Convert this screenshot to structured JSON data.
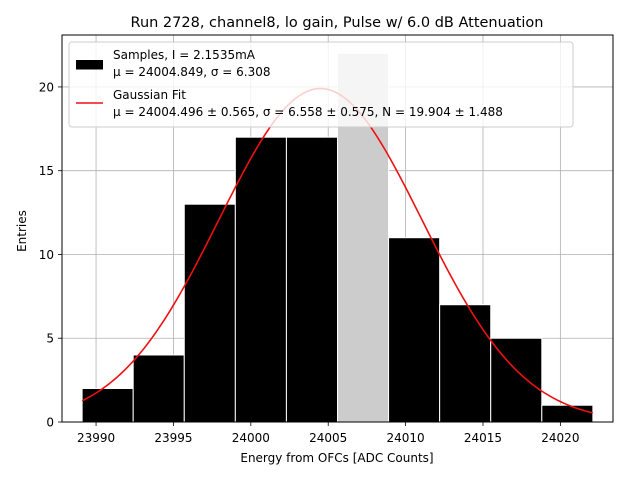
{
  "chart_data": {
    "type": "bar",
    "title": "Run 2728, channel8, lo gain, Pulse w/ 6.0 dB Attenuation",
    "xlabel": "Energy from OFCs [ADC Counts]",
    "ylabel": "Entries",
    "xlim": [
      23987.8,
      24023.4
    ],
    "ylim": [
      0,
      23.1
    ],
    "grid": true,
    "legend_position": "top-left",
    "xticks": [
      23990,
      23995,
      24000,
      24005,
      24010,
      24015,
      24020
    ],
    "yticks": [
      0,
      5,
      10,
      15,
      20
    ],
    "xtick_labels": [
      "23990",
      "23995",
      "24000",
      "24005",
      "24010",
      "24015",
      "24020"
    ],
    "ytick_labels": [
      "0",
      "5",
      "10",
      "15",
      "20"
    ],
    "histogram": {
      "name": "Samples",
      "bin_edges": [
        23989.1,
        23992.4,
        23995.7,
        23999.0,
        24002.3,
        24005.6,
        24008.9,
        24012.2,
        24015.5,
        24018.8,
        24022.1
      ],
      "counts": [
        2,
        4,
        13,
        17,
        17,
        22,
        11,
        7,
        5,
        1
      ],
      "highlight_bin_index": 5,
      "color": "#000000",
      "highlight_color": "#cccccc"
    },
    "fit": {
      "name": "Gaussian Fit",
      "mu": 24004.496,
      "sigma": 6.558,
      "amplitude": 19.904,
      "x_range": [
        23989.1,
        24022.1
      ],
      "color": "#ee1111"
    },
    "legend": [
      {
        "line1": "Samples, I = 2.1535mA",
        "line2": "μ = 24004.849, σ = 6.308"
      },
      {
        "line1": "Gaussian Fit",
        "line2": "μ = 24004.496 ± 0.565, σ = 6.558 ± 0.575, N = 19.904 ± 1.488"
      }
    ]
  }
}
